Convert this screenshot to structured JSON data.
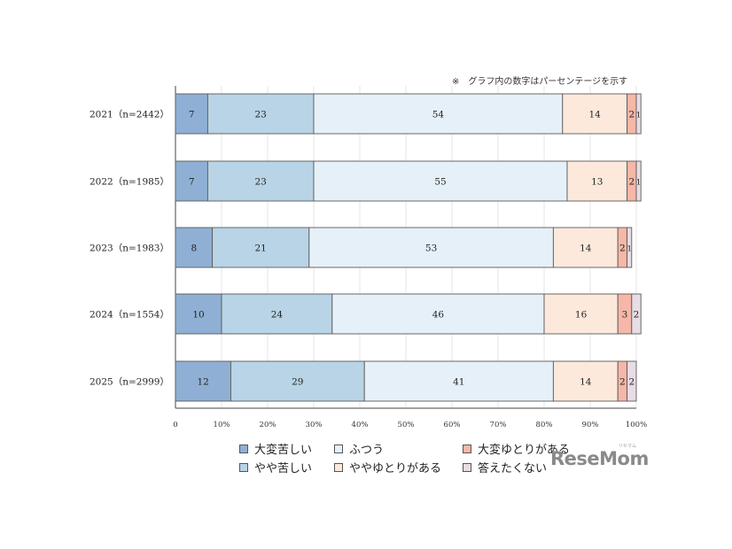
{
  "note": "※　グラフ内の数字はパーセンテージを示す",
  "chart_data": {
    "type": "bar",
    "orientation": "horizontal",
    "stacked": true,
    "categories": [
      "2021（n=2442）",
      "2022（n=1985）",
      "2023（n=1983）",
      "2024（n=1554）",
      "2025（n=2999）"
    ],
    "series": [
      {
        "name": "大変苦しい",
        "color": "#8fb0d4",
        "values": [
          7,
          7,
          8,
          10,
          12
        ]
      },
      {
        "name": "やや苦しい",
        "color": "#b8d4e6",
        "values": [
          23,
          23,
          21,
          24,
          29
        ]
      },
      {
        "name": "ふつう",
        "color": "#e6f0f8",
        "values": [
          54,
          55,
          53,
          46,
          41
        ]
      },
      {
        "name": "ややゆとりがある",
        "color": "#fce9dc",
        "values": [
          14,
          13,
          14,
          16,
          14
        ]
      },
      {
        "name": "大変ゆとりがある",
        "color": "#f6b7a7",
        "values": [
          2,
          2,
          2,
          3,
          2
        ]
      },
      {
        "name": "答えたくない",
        "color": "#e8dde4",
        "values": [
          1,
          1,
          1,
          2,
          2
        ]
      }
    ],
    "xlim": [
      0,
      100
    ],
    "xticks": [
      "0",
      "10%",
      "20%",
      "30%",
      "40%",
      "50%",
      "60%",
      "70%",
      "80%",
      "90%",
      "100%"
    ],
    "grid": true,
    "legend_position": "bottom"
  },
  "legend_order": [
    0,
    2,
    4,
    1,
    3,
    5
  ],
  "watermark": {
    "text": "ReseMom",
    "ruby": "リセマム"
  }
}
